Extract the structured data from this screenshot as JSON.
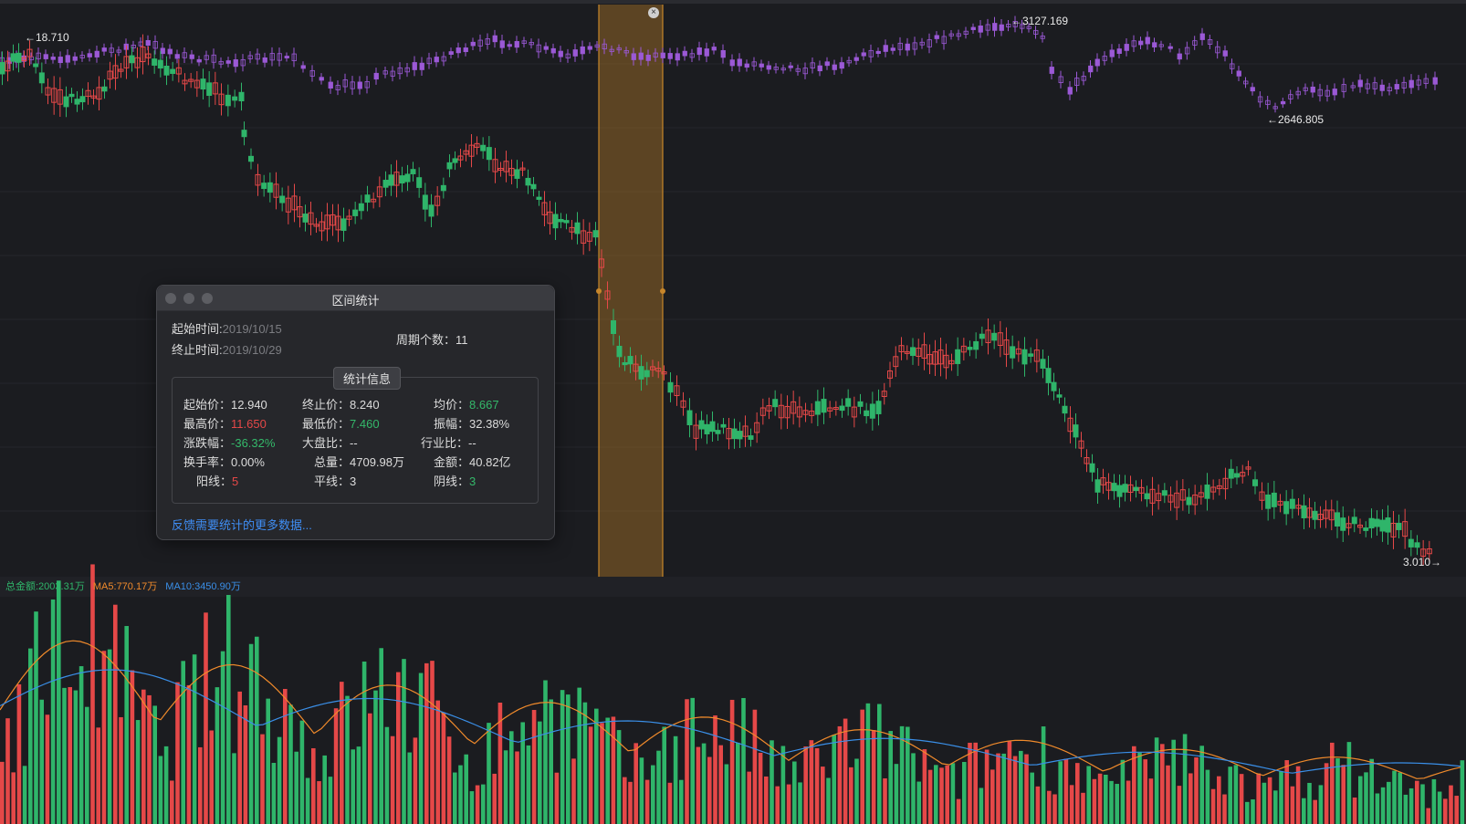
{
  "colors": {
    "up": "#e54848",
    "down": "#2fb56a",
    "index": "#9b59d6",
    "ma5": "#f08a2b",
    "ma10": "#3a8fe8",
    "selection": "#c8862a"
  },
  "price_labels": {
    "high_left": "←18.710",
    "index_high": "←3127.169",
    "index_low": "←2646.805",
    "last_price": "3.010→"
  },
  "volume_legend": {
    "total": "总金额:2003.31万",
    "ma5": "MA5:770.17万",
    "ma10": "MA10:3450.90万"
  },
  "close_icon": "×",
  "dialog": {
    "title": "区间统计",
    "start_label": "起始时间:",
    "start_value": "2019/10/15",
    "end_label": "终止时间:",
    "end_value": "2019/10/29",
    "period_label": "周期个数：",
    "period_value": "11",
    "section_tab": "统计信息",
    "stats": {
      "open_label": "起始价：",
      "open_value": "12.940",
      "close_label": "终止价：",
      "close_value": "8.240",
      "avg_label": "均价：",
      "avg_value": "8.667",
      "high_label": "最高价：",
      "high_value": "11.650",
      "low_label": "最低价：",
      "low_value": "7.460",
      "amp_label": "振幅：",
      "amp_value": "32.38%",
      "chg_label": "涨跌幅：",
      "chg_value": "-36.32%",
      "mkt_label": "大盘比：",
      "mkt_value": "--",
      "ind_label": "行业比：",
      "ind_value": "--",
      "turn_label": "换手率：",
      "turn_value": "0.00%",
      "vol_label": "总量：",
      "vol_value": "4709.98万",
      "amt_label": "金额：",
      "amt_value": "40.82亿",
      "yang_label": "阳线：",
      "yang_value": "5",
      "flat_label": "平线：",
      "flat_value": "3",
      "yin_label": "阴线：",
      "yin_value": "3"
    },
    "feedback_link": "反馈需要统计的更多数据..."
  }
}
